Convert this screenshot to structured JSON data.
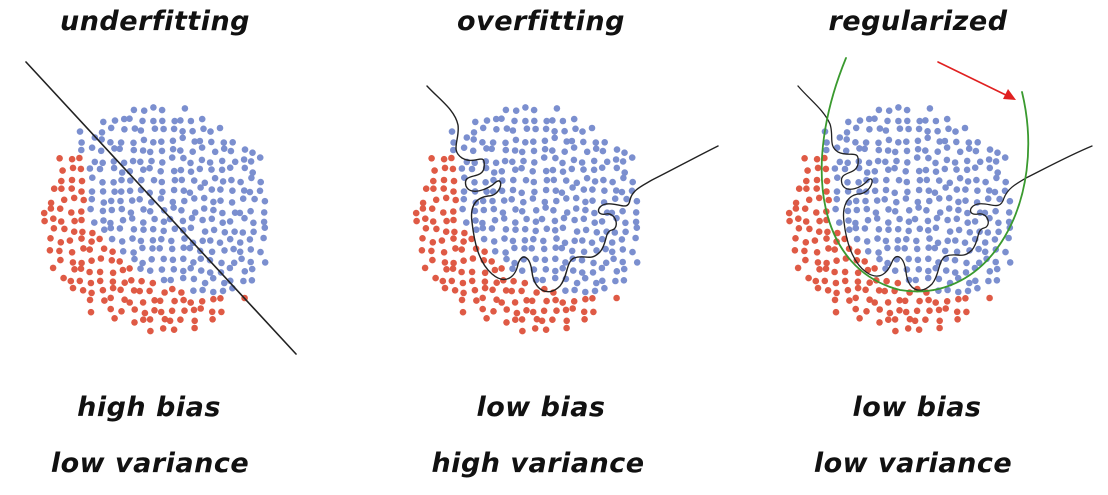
{
  "panels": [
    {
      "title": "underfitting",
      "bias": "high bias",
      "variance": "low variance"
    },
    {
      "title": "overfitting",
      "bias": "low bias",
      "variance": "high variance"
    },
    {
      "title": "regularized",
      "bias": "low bias",
      "variance": "low variance"
    }
  ],
  "colors": {
    "class_a": "#7b8fcf",
    "class_b": "#df5a45",
    "boundary": "#222222",
    "regularized_curve": "#3a9a2f",
    "annotation_arrow": "#e02020"
  }
}
